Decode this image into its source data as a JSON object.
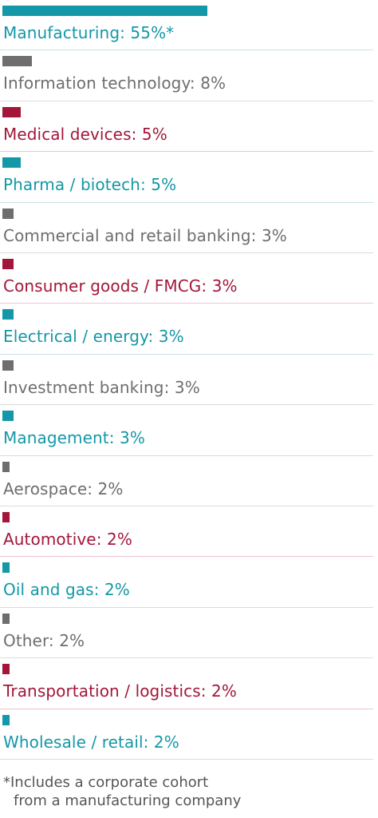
{
  "chart_data": {
    "type": "bar",
    "orientation": "horizontal",
    "unit": "%",
    "categories": [
      "Manufacturing",
      "Information technology",
      "Medical devices",
      "Pharma / biotech",
      "Commercial and retail banking",
      "Consumer goods / FMCG",
      "Electrical / energy",
      "Investment banking",
      "Management",
      "Aerospace",
      "Automotive",
      "Oil and gas",
      "Other",
      "Transportation / logistics",
      "Wholesale / retail"
    ],
    "values": [
      55,
      8,
      5,
      5,
      3,
      3,
      3,
      3,
      3,
      2,
      2,
      2,
      2,
      2,
      2
    ],
    "labels": [
      "Manufacturing: 55%*",
      "Information technology: 8%",
      "Medical devices: 5%",
      "Pharma / biotech: 5%",
      "Commercial and retail banking: 3%",
      "Consumer goods / FMCG: 3%",
      "Electrical / energy: 3%",
      "Investment banking: 3%",
      "Management: 3%",
      "Aerospace: 2%",
      "Automotive: 2%",
      "Oil and gas: 2%",
      "Other: 2%",
      "Transportation / logistics: 2%",
      "Wholesale / retail: 2%"
    ],
    "colors": [
      "#1497a6",
      "#6e6e6e",
      "#a3163a",
      "#1497a6",
      "#6e6e6e",
      "#a3163a",
      "#1497a6",
      "#6e6e6e",
      "#1497a6",
      "#6e6e6e",
      "#a3163a",
      "#1497a6",
      "#6e6e6e",
      "#a3163a",
      "#1497a6"
    ],
    "divider_colors": {
      "#1497a6": "#c7e3e7",
      "#6e6e6e": "#dcdcdc",
      "#a3163a": "#ecc6cf"
    },
    "xlim": [
      0,
      100
    ],
    "grid": false
  },
  "footnote": {
    "line1": "*Includes a corporate cohort",
    "line2": "from a manufacturing company"
  }
}
